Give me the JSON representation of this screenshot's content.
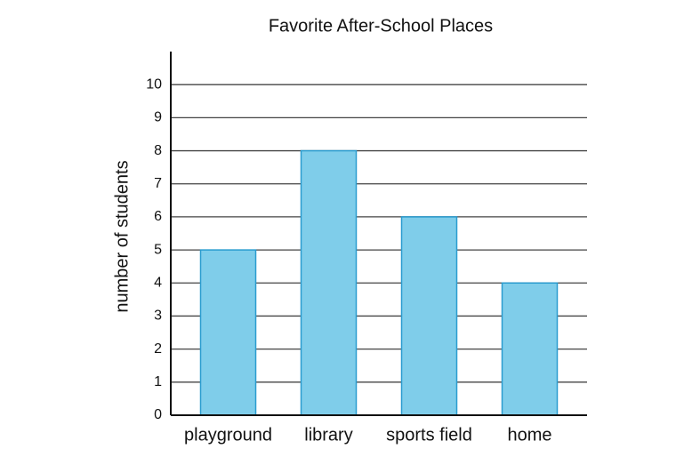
{
  "chart_data": {
    "type": "bar",
    "title": "Favorite After-School Places",
    "y_label": "number of students",
    "categories": [
      "playground",
      "library",
      "sports field",
      "home"
    ],
    "values": [
      5,
      8,
      6,
      4
    ],
    "color": "#7fcdea",
    "edge_color": "#2a9ccf",
    "ylim": [
      0,
      11
    ],
    "yticks": [
      0,
      1,
      2,
      3,
      4,
      5,
      6,
      7,
      8,
      9,
      10
    ],
    "grid": true
  }
}
